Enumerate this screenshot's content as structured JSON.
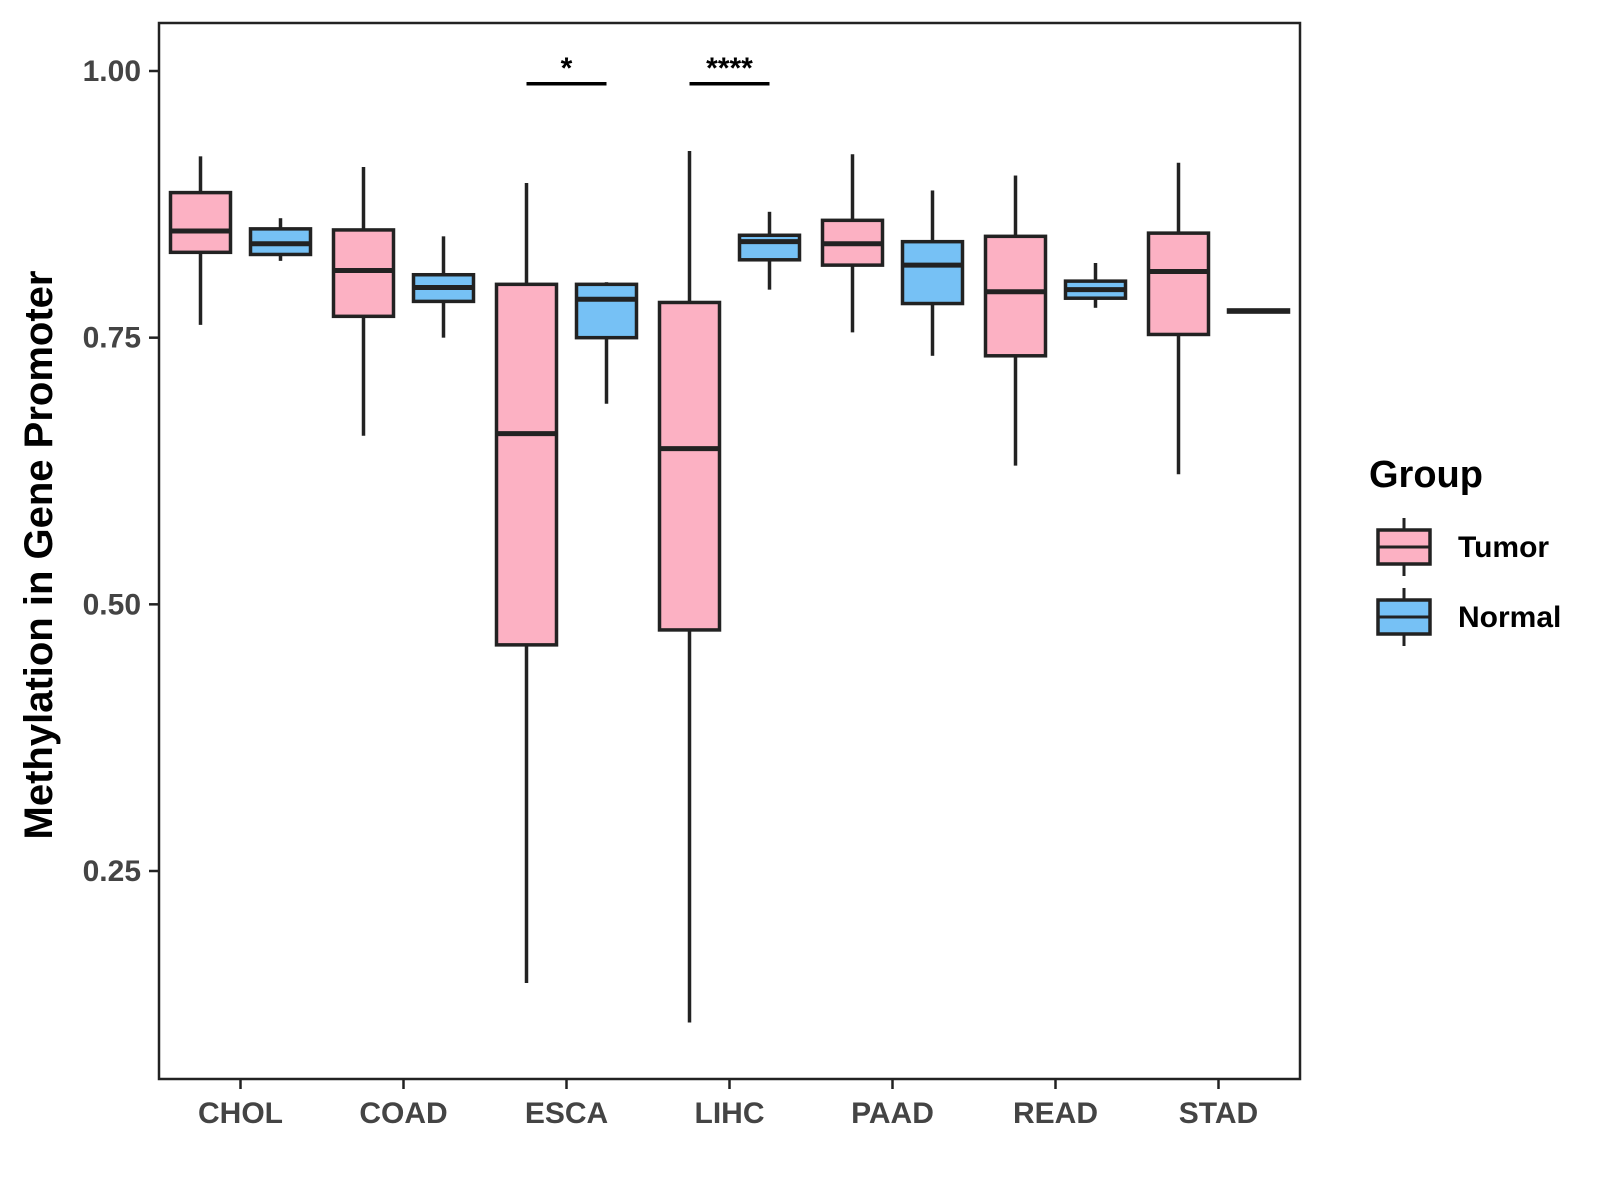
{
  "chart_data": {
    "type": "boxplot",
    "title": "",
    "xlabel": "",
    "ylabel": "Methylation in Gene Promoter",
    "ylim": [
      0.055,
      1.045
    ],
    "yticks": [
      0.25,
      0.5,
      0.75,
      1.0
    ],
    "ytick_labels": [
      "0.25",
      "0.50",
      "0.75",
      "1.00"
    ],
    "categories": [
      "CHOL",
      "COAD",
      "ESCA",
      "LIHC",
      "PAAD",
      "READ",
      "STAD"
    ],
    "legend": {
      "title": "Group",
      "position": "right",
      "items": [
        {
          "name": "Tumor",
          "color": "#FCB1C3"
        },
        {
          "name": "Normal",
          "color": "#76C1F5"
        }
      ]
    },
    "series": [
      {
        "name": "Tumor",
        "color": "#FCB1C3",
        "boxes": [
          {
            "category": "CHOL",
            "min": 0.762,
            "q1": 0.83,
            "median": 0.85,
            "q3": 0.886,
            "max": 0.92
          },
          {
            "category": "COAD",
            "min": 0.658,
            "q1": 0.77,
            "median": 0.813,
            "q3": 0.851,
            "max": 0.91
          },
          {
            "category": "ESCA",
            "min": 0.145,
            "q1": 0.462,
            "median": 0.66,
            "q3": 0.8,
            "max": 0.895
          },
          {
            "category": "LIHC",
            "min": 0.108,
            "q1": 0.476,
            "median": 0.646,
            "q3": 0.783,
            "max": 0.925
          },
          {
            "category": "PAAD",
            "min": 0.755,
            "q1": 0.818,
            "median": 0.838,
            "q3": 0.86,
            "max": 0.922
          },
          {
            "category": "READ",
            "min": 0.63,
            "q1": 0.733,
            "median": 0.793,
            "q3": 0.845,
            "max": 0.902
          },
          {
            "category": "STAD",
            "min": 0.622,
            "q1": 0.753,
            "median": 0.812,
            "q3": 0.848,
            "max": 0.914
          }
        ]
      },
      {
        "name": "Normal",
        "color": "#76C1F5",
        "boxes": [
          {
            "category": "CHOL",
            "min": 0.822,
            "q1": 0.828,
            "median": 0.838,
            "q3": 0.852,
            "max": 0.862
          },
          {
            "category": "COAD",
            "min": 0.75,
            "q1": 0.784,
            "median": 0.797,
            "q3": 0.809,
            "max": 0.845
          },
          {
            "category": "ESCA",
            "min": 0.688,
            "q1": 0.75,
            "median": 0.786,
            "q3": 0.8,
            "max": 0.802
          },
          {
            "category": "LIHC",
            "min": 0.795,
            "q1": 0.823,
            "median": 0.84,
            "q3": 0.846,
            "max": 0.868
          },
          {
            "category": "PAAD",
            "min": 0.733,
            "q1": 0.782,
            "median": 0.818,
            "q3": 0.84,
            "max": 0.888
          },
          {
            "category": "READ",
            "min": 0.778,
            "q1": 0.787,
            "median": 0.795,
            "q3": 0.803,
            "max": 0.82
          },
          {
            "category": "STAD",
            "min": 0.774,
            "q1": 0.774,
            "median": 0.775,
            "q3": 0.776,
            "max": 0.776
          }
        ]
      }
    ],
    "annotations": [
      {
        "category": "ESCA",
        "label": "*",
        "y": 0.988
      },
      {
        "category": "LIHC",
        "label": "****",
        "y": 0.988
      }
    ]
  }
}
